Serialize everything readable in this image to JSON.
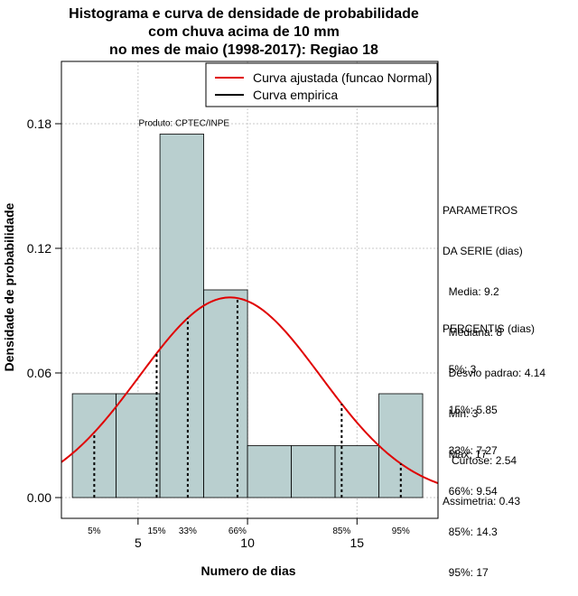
{
  "chart_data": {
    "type": "bar",
    "title_lines": [
      "Histograma e curva de densidade de probabilidade",
      "com chuva acima de 10 mm",
      "no mes de maio (1998-2017): Regiao 18"
    ],
    "xlabel": "Numero de dias",
    "ylabel": "Densidade de probabilidade",
    "xlim": [
      1.5,
      18.7
    ],
    "ylim": [
      -0.01,
      0.21
    ],
    "x_ticks": [
      5,
      10,
      15
    ],
    "y_ticks": [
      0.0,
      0.06,
      0.12,
      0.18
    ],
    "y_tick_labels": [
      "0.00",
      "0.06",
      "0.12",
      "0.18"
    ],
    "grid": true,
    "bins": [
      {
        "x0": 2,
        "x1": 4,
        "density": 0.05
      },
      {
        "x0": 4,
        "x1": 6,
        "density": 0.05
      },
      {
        "x0": 6,
        "x1": 8,
        "density": 0.175
      },
      {
        "x0": 8,
        "x1": 10,
        "density": 0.1
      },
      {
        "x0": 10,
        "x1": 12,
        "density": 0.025
      },
      {
        "x0": 12,
        "x1": 14,
        "density": 0.025
      },
      {
        "x0": 14,
        "x1": 16,
        "density": 0.025
      },
      {
        "x0": 16,
        "x1": 18,
        "density": 0.05
      }
    ],
    "bar_color": "#b9cfcf",
    "normal_curve": {
      "mean": 9.2,
      "sd": 4.14,
      "color": "#e00000"
    },
    "legend": {
      "position": "top-right",
      "entries": [
        {
          "label": "Curva ajustada (funcao Normal)",
          "color": "#e00000"
        },
        {
          "label": "Curva empirica",
          "color": "#000000"
        }
      ]
    },
    "product_label": "Produto: CPTEC/INPE",
    "percentile_lines": [
      {
        "x": 3,
        "label": "5%"
      },
      {
        "x": 5.85,
        "label": "15%"
      },
      {
        "x": 7.27,
        "label": "33%"
      },
      {
        "x": 9.54,
        "label": "66%"
      },
      {
        "x": 14.3,
        "label": "85%"
      },
      {
        "x": 17,
        "label": "95%"
      }
    ]
  },
  "side_panel": {
    "params_header1": "PARAMETROS",
    "params_header2": "DA SERIE (dias)",
    "media": "  Media: 9.2",
    "mediana": "  Mediana: 8",
    "desvio": "  Desvio padrao: 4.14",
    "min": "  Min: 3",
    "max": "  Max: 17",
    "perc_header": "PERCENTIS (dias)",
    "p5": "  5%: 3",
    "p15": "  15%: 5.85",
    "p33": "  33%: 7.27",
    "p66": "  66%: 9.54",
    "p85": "  85%: 14.3",
    "p95": "  95%: 17",
    "curtose": "   Curtose: 2.54",
    "assimetria": "Assimetria: 0.43"
  }
}
